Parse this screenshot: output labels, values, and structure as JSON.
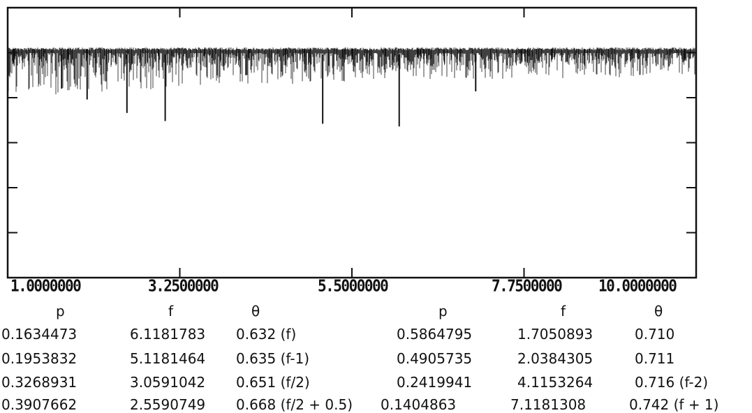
{
  "chart_data": {
    "type": "line",
    "title": "",
    "xlabel": "",
    "ylabel": "",
    "xlim": [
      1.0,
      10.0
    ],
    "x_tick_labels": [
      "1.0000000",
      "3.2500000",
      "5.5000000",
      "7.7500000",
      "10.0000000"
    ],
    "x_ticks": [
      1.0,
      3.25,
      5.5,
      7.75,
      10.0
    ],
    "y_tick_labels_shown": false,
    "y_ticks_count": 5,
    "dips": [
      {
        "x": 1.7050893,
        "depth": 0.3
      },
      {
        "x": 2.0384305,
        "depth": 0.34
      },
      {
        "x": 2.5590749,
        "depth": 0.39
      },
      {
        "x": 3.0591042,
        "depth": 0.42
      },
      {
        "x": 4.1153264,
        "depth": 0.25
      },
      {
        "x": 5.1181464,
        "depth": 0.43
      },
      {
        "x": 6.1181783,
        "depth": 0.44
      },
      {
        "x": 7.1181308,
        "depth": 0.31
      }
    ]
  },
  "tables": [
    {
      "headers": {
        "p": "p",
        "f": "f",
        "theta": "θ"
      },
      "rows": [
        {
          "p": "0.1634473",
          "f": "6.1181783",
          "theta": "0.632 (f)"
        },
        {
          "p": "0.1953832",
          "f": "5.1181464",
          "theta": "0.635 (f-1)"
        },
        {
          "p": "0.3268931",
          "f": "3.0591042",
          "theta": "0.651 (f/2)"
        },
        {
          "p": "0.3907662",
          "f": "2.5590749",
          "theta": "0.668 (f/2 + 0.5)"
        }
      ]
    },
    {
      "headers": {
        "p": "p",
        "f": "f",
        "theta": "θ"
      },
      "rows": [
        {
          "p": "0.5864795",
          "f": "1.7050893",
          "theta": "0.710"
        },
        {
          "p": "0.4905735",
          "f": "2.0384305",
          "theta": "0.711"
        },
        {
          "p": "0.2419941",
          "f": "4.1153264",
          "theta": "0.716 (f-2)"
        },
        {
          "p": "0.1404863",
          "f": "7.1181308",
          "theta": "0.742 (f + 1)"
        }
      ]
    }
  ],
  "colors": {
    "ink": "#111111",
    "background": "#ffffff"
  }
}
